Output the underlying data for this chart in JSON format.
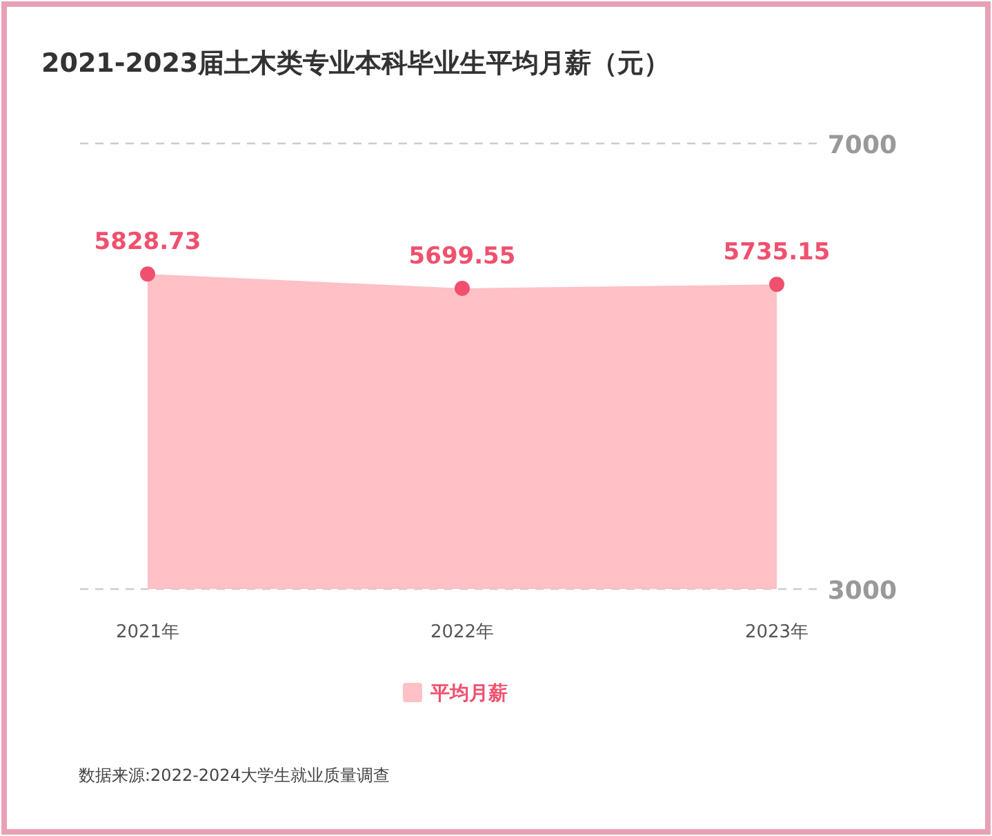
{
  "chart_data": {
    "type": "area",
    "title": "2021-2023届土木类专业本科毕业生平均月薪（元）",
    "categories": [
      "2021年",
      "2022年",
      "2023年"
    ],
    "series": [
      {
        "name": "平均月薪",
        "color": "#ffc0c6",
        "values": [
          5828.73,
          5699.55,
          5735.15
        ]
      }
    ],
    "ylim": [
      3000,
      7000
    ],
    "yticks": [
      3000,
      7000
    ],
    "grid": "y",
    "data_labels": true,
    "marker": "circle",
    "legend": "bottom",
    "annotations": [
      "数据来源:2022-2024大学生就业质量调查"
    ]
  }
}
